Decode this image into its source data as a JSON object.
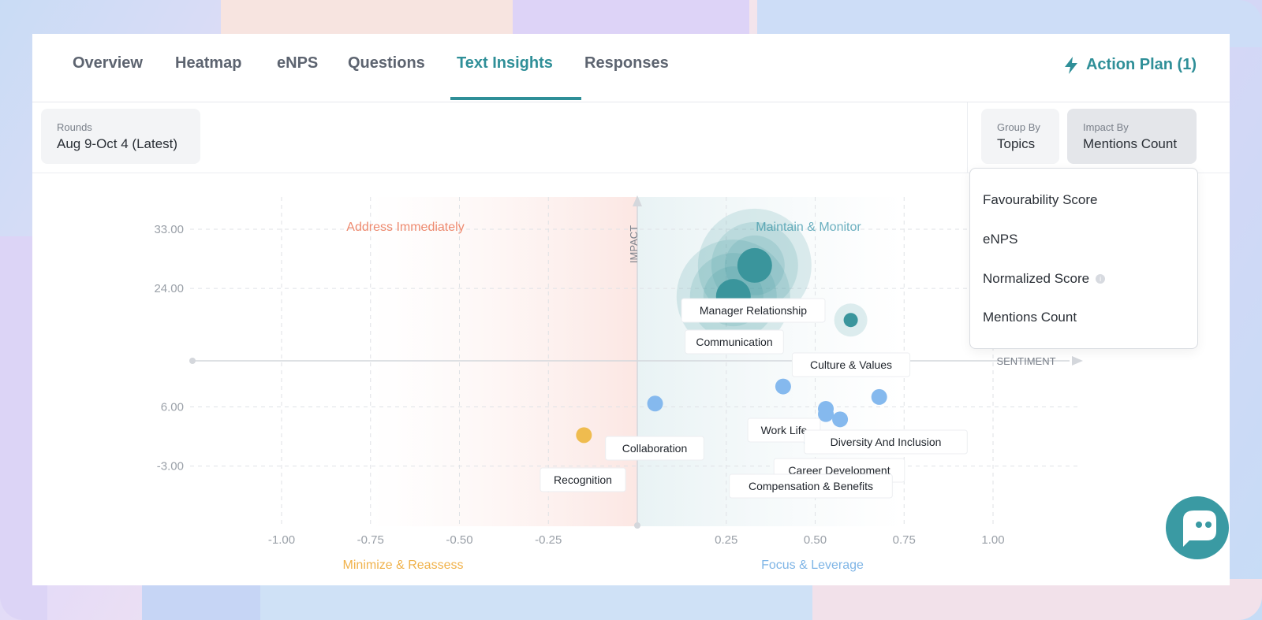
{
  "tabs": [
    {
      "label": "Overview"
    },
    {
      "label": "Heatmap"
    },
    {
      "label": "eNPS"
    },
    {
      "label": "Questions"
    },
    {
      "label": "Text Insights"
    },
    {
      "label": "Responses"
    }
  ],
  "active_tab": "Text Insights",
  "action_plan": {
    "label": "Action Plan (1)",
    "icon": "bolt-icon"
  },
  "filters": {
    "rounds": {
      "label": "Rounds",
      "value": "Aug 9-Oct 4 (Latest)"
    },
    "group_by": {
      "label": "Group By",
      "value": "Topics"
    },
    "impact_by": {
      "label": "Impact By",
      "value": "Mentions Count"
    }
  },
  "dropdown": {
    "options": [
      {
        "label": "Favourability Score"
      },
      {
        "label": "eNPS"
      },
      {
        "label": "Normalized Score",
        "info": "i"
      },
      {
        "label": "Mentions Count"
      }
    ]
  },
  "colors": {
    "accent": "#2f8f98",
    "teal_bubble": "#3a959c",
    "blue_bubble": "#85b9ee",
    "yellow_bubble": "#efbc4f",
    "address": "#ee8a6f",
    "maintain": "#6cb0c0",
    "minimize": "#f0b24b",
    "focus": "#7fb5e6"
  },
  "chart_data": {
    "type": "scatter",
    "xlabel": "SENTIMENT",
    "ylabel": "IMPACT",
    "x_ticks": [
      "-1.00",
      "-0.75",
      "-0.50",
      "-0.25",
      "0.25",
      "0.50",
      "0.75",
      "1.00"
    ],
    "y_ticks": [
      "33.00",
      "24.00",
      "6.00",
      "-3.00"
    ],
    "xlim": [
      -1.25,
      1.25
    ],
    "ylim": [
      -9,
      39
    ],
    "quadrants": {
      "top_left": "Address Immediately",
      "top_right": "Maintain & Monitor",
      "bottom_left": "Minimize & Reassess",
      "bottom_right": "Focus & Leverage"
    },
    "points": [
      {
        "label": "Manager Relationship",
        "x": 0.33,
        "y": 27.5,
        "group": "teal",
        "halo": 3
      },
      {
        "label": "Communication",
        "x": 0.27,
        "y": 22.8,
        "group": "teal",
        "halo": 3
      },
      {
        "label": "Culture & Values",
        "x": 0.6,
        "y": 19.2,
        "group": "teal",
        "halo": 1
      },
      {
        "label": "Work Life",
        "x": 0.41,
        "y": 9.1,
        "group": "blue"
      },
      {
        "label": "Diversity And Inclusion",
        "x": 0.57,
        "y": 4.1,
        "group": "blue"
      },
      {
        "label": "",
        "x": 0.53,
        "y": 5.7,
        "group": "blue"
      },
      {
        "label": "",
        "x": 0.53,
        "y": 4.9,
        "group": "blue"
      },
      {
        "label": "",
        "x": 0.68,
        "y": 7.5,
        "group": "blue"
      },
      {
        "label": "Career Development",
        "x": 0.49,
        "y": 0.7,
        "group": "blue"
      },
      {
        "label": "Compensation & Benefits",
        "x": 0.49,
        "y": 0.7,
        "group": "blue"
      },
      {
        "label": "Collaboration",
        "x": 0.05,
        "y": 6.5,
        "group": "blue"
      },
      {
        "label": "Recognition",
        "x": -0.15,
        "y": 1.7,
        "group": "yellow"
      }
    ]
  }
}
